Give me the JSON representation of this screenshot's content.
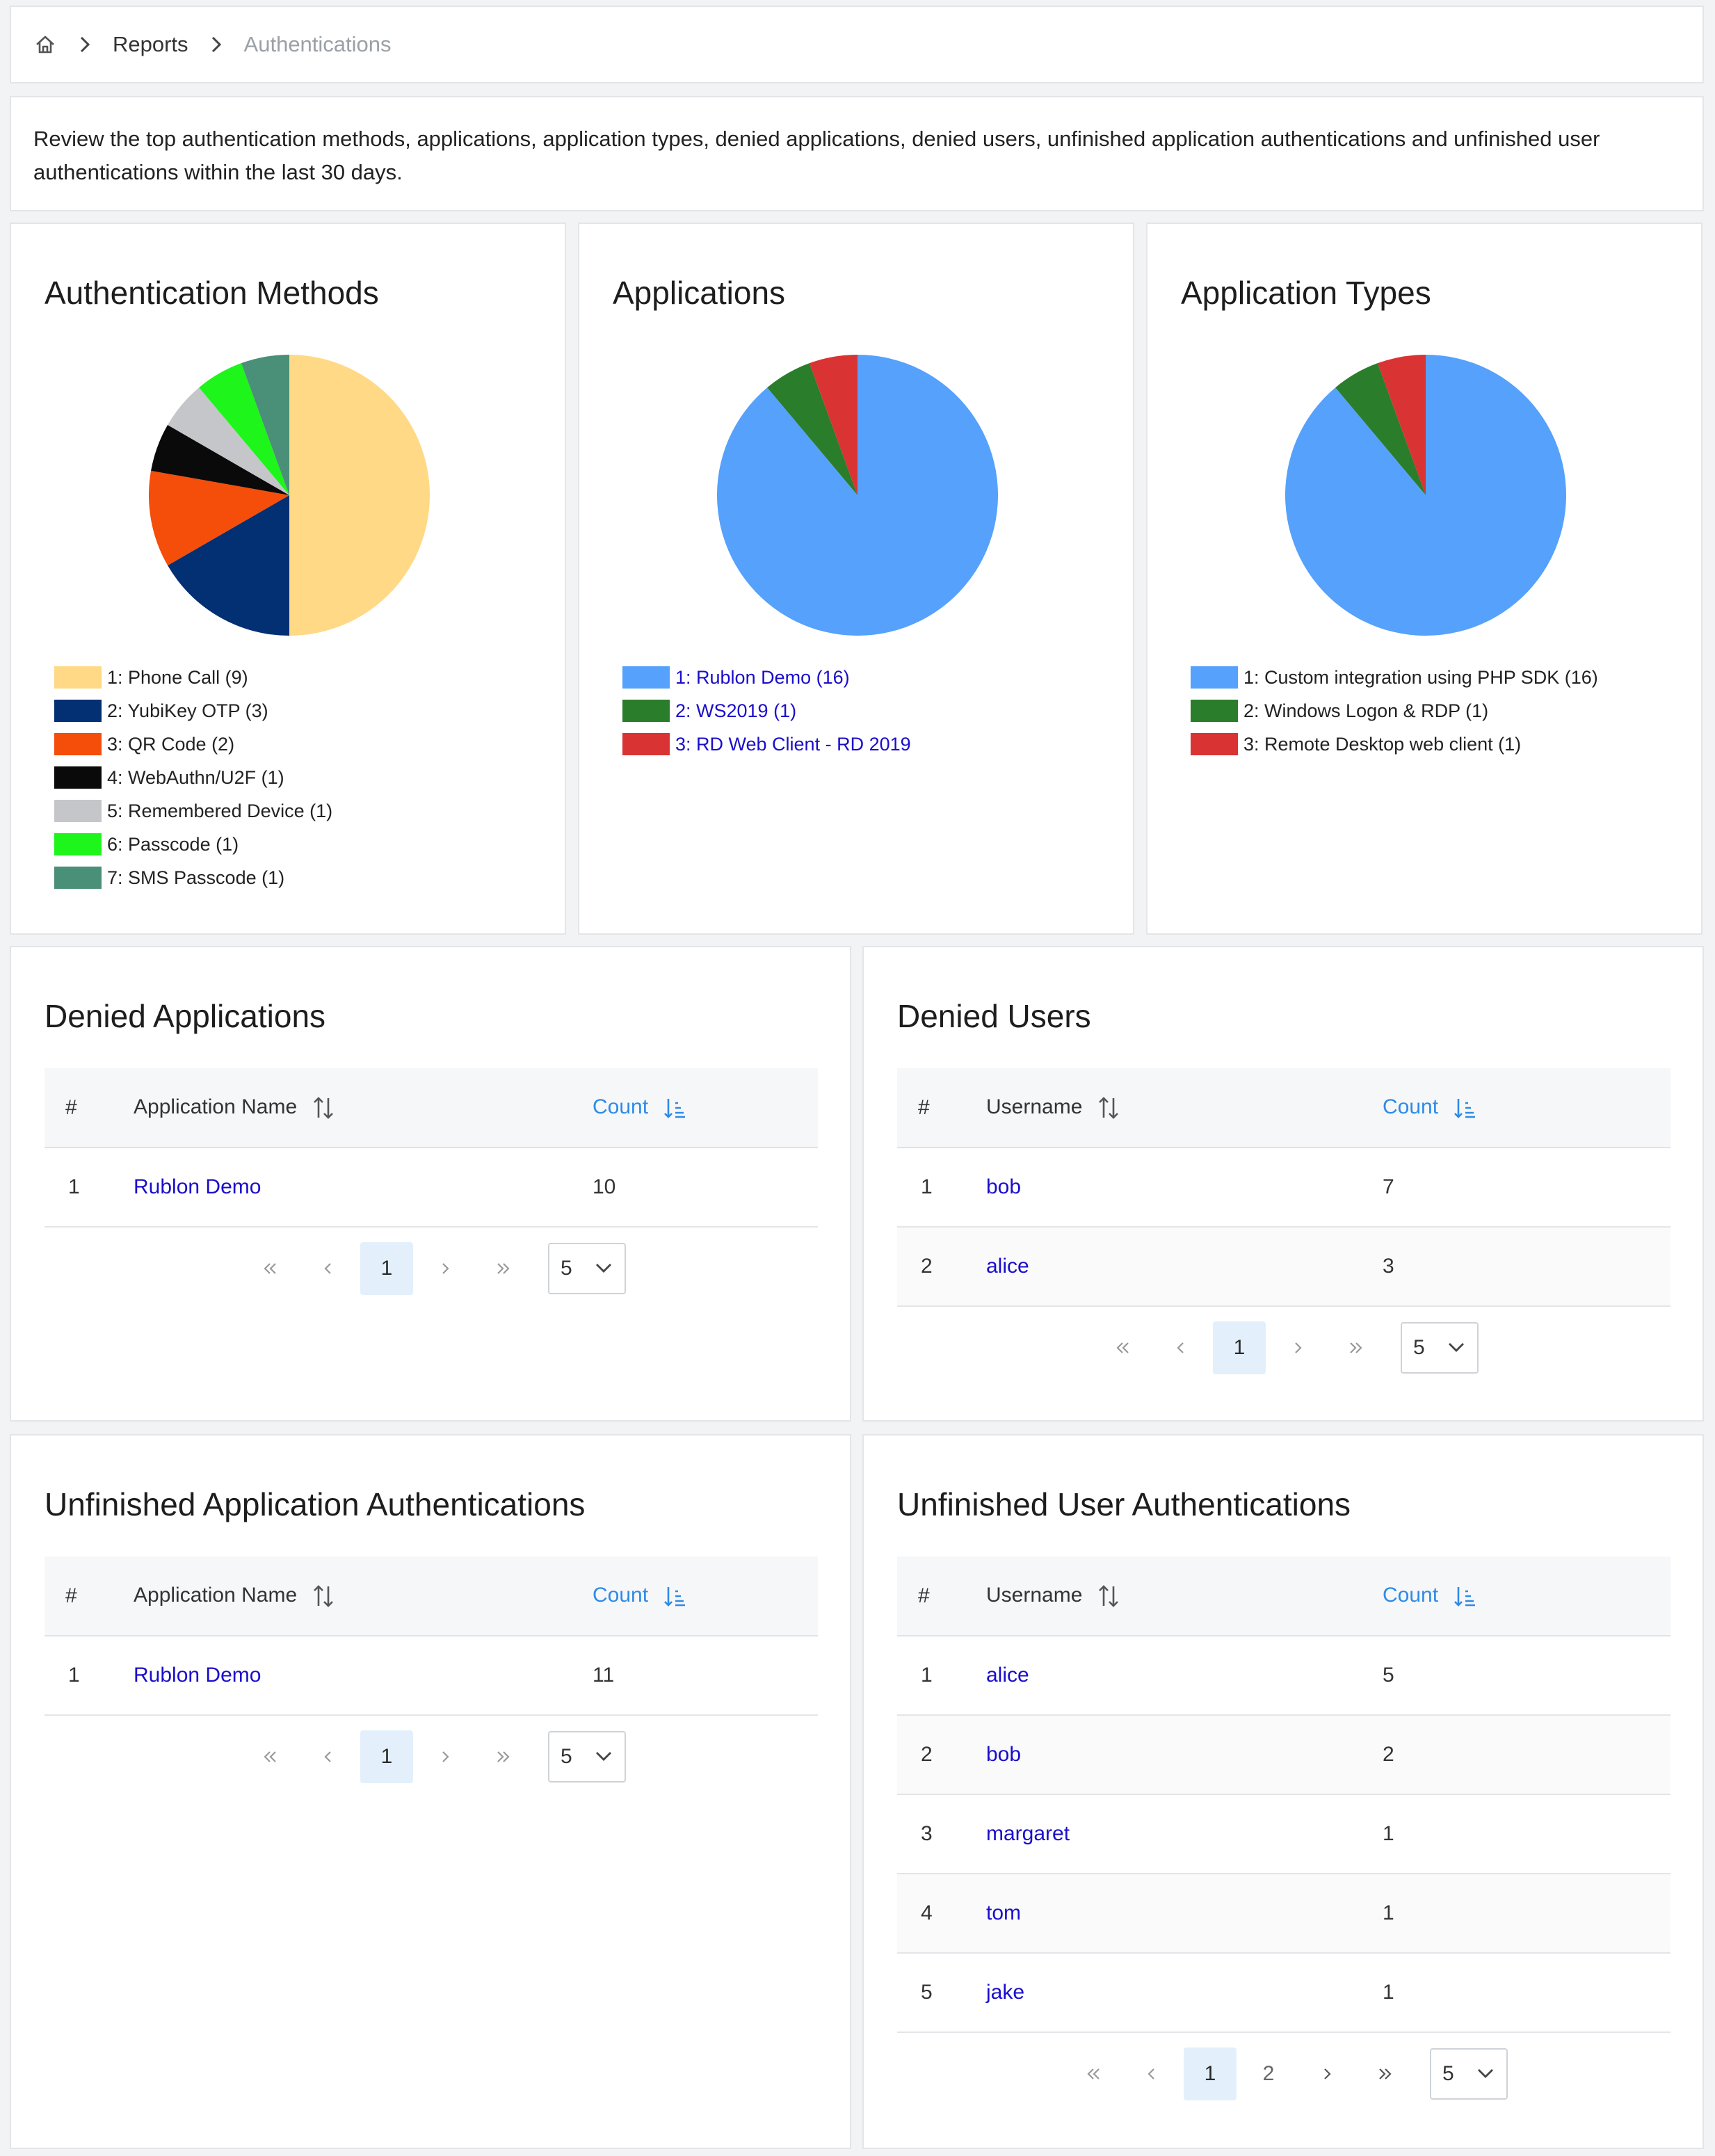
{
  "breadcrumb": {
    "reports": "Reports",
    "current": "Authentications"
  },
  "description": "Review the top authentication methods, applications, application types, denied applications, denied users, unfinished application authentications and unfinished user authentications within the last 30 days.",
  "charts": {
    "auth_methods_title": "Authentication Methods",
    "applications_title": "Applications",
    "app_types_title": "Application Types"
  },
  "chart_data": [
    {
      "type": "pie",
      "title": "Authentication Methods",
      "labels": [
        "1: Phone Call (9)",
        "2: YubiKey OTP (3)",
        "3: QR Code (2)",
        "4: WebAuthn/U2F (1)",
        "5: Remembered Device (1)",
        "6: Passcode (1)",
        "7: SMS Passcode (1)"
      ],
      "values": [
        9,
        3,
        2,
        1,
        1,
        1,
        1
      ],
      "colors": [
        "#ffd985",
        "#032f73",
        "#f54d0a",
        "#0a0a0a",
        "#c4c6ca",
        "#1ef51a",
        "#4a8f78"
      ],
      "legend": "bottom-left"
    },
    {
      "type": "pie",
      "title": "Applications",
      "labels": [
        "1: Rublon Demo (16)",
        "2: WS2019 (1)",
        "3: RD Web Client - RD 2019"
      ],
      "values": [
        16,
        1,
        1
      ],
      "colors": [
        "#55a1fc",
        "#2a7d2a",
        "#d93333"
      ],
      "legend": "bottom-left"
    },
    {
      "type": "pie",
      "title": "Application Types",
      "labels": [
        "1: Custom integration using PHP SDK (16)",
        "2: Windows Logon & RDP (1)",
        "3: Remote Desktop web client (1)"
      ],
      "values": [
        16,
        1,
        1
      ],
      "colors": [
        "#55a1fc",
        "#2a7d2a",
        "#d93333"
      ],
      "legend": "bottom-left"
    }
  ],
  "denied_apps": {
    "title": "Denied Applications",
    "headers": {
      "num": "#",
      "name": "Application Name",
      "count": "Count"
    },
    "rows": [
      {
        "num": "1",
        "name": "Rublon Demo",
        "count": "10"
      }
    ],
    "pager": {
      "page": "1",
      "size": "5"
    }
  },
  "denied_users": {
    "title": "Denied Users",
    "headers": {
      "num": "#",
      "name": "Username",
      "count": "Count"
    },
    "rows": [
      {
        "num": "1",
        "name": "bob",
        "count": "7"
      },
      {
        "num": "2",
        "name": "alice",
        "count": "3"
      }
    ],
    "pager": {
      "page": "1",
      "size": "5"
    }
  },
  "unf_apps": {
    "title": "Unfinished Application Authentications",
    "headers": {
      "num": "#",
      "name": "Application Name",
      "count": "Count"
    },
    "rows": [
      {
        "num": "1",
        "name": "Rublon Demo",
        "count": "11"
      }
    ],
    "pager": {
      "page": "1",
      "size": "5"
    }
  },
  "unf_users": {
    "title": "Unfinished User Authentications",
    "headers": {
      "num": "#",
      "name": "Username",
      "count": "Count"
    },
    "rows": [
      {
        "num": "1",
        "name": "alice",
        "count": "5"
      },
      {
        "num": "2",
        "name": "bob",
        "count": "2"
      },
      {
        "num": "3",
        "name": "margaret",
        "count": "1"
      },
      {
        "num": "4",
        "name": "tom",
        "count": "1"
      },
      {
        "num": "5",
        "name": "jake",
        "count": "1"
      }
    ],
    "pager": {
      "page": "1",
      "page2": "2",
      "size": "5"
    }
  },
  "icons": {
    "home": "home-icon",
    "separator": "chevron-right-icon",
    "sort": "sort-icon",
    "sort_count": "sort-descending-icon",
    "first": "double-chevron-left-icon",
    "prev": "chevron-left-icon",
    "next": "chevron-right-icon",
    "last": "double-chevron-right-icon",
    "dropdown": "chevron-down-icon"
  }
}
